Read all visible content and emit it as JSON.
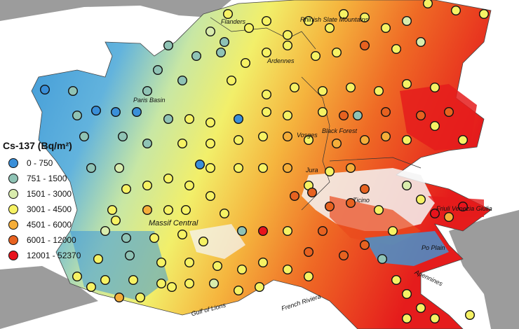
{
  "legend": {
    "title": "Cs-137 (Bq/m²)",
    "classes": [
      {
        "label": "0 - 750",
        "color": "#3a8fd9"
      },
      {
        "label": "751 - 1500",
        "color": "#8fc3b5"
      },
      {
        "label": "1501 - 3000",
        "color": "#d9ecad"
      },
      {
        "label": "3001 - 4500",
        "color": "#f6f264"
      },
      {
        "label": "4501 - 6000",
        "color": "#f5ae3a"
      },
      {
        "label": "6001 - 12000",
        "color": "#e76220"
      },
      {
        "label": "12001 - 52370",
        "color": "#e8131c"
      }
    ]
  },
  "place_labels": {
    "flanders": "Flanders",
    "rhinish": "Rhinish Slate Mountains",
    "ardennes": "Ardennes",
    "paris_basin": "Paris Basin",
    "vosges": "Vosges",
    "black_forest": "Black Forest",
    "jura": "Jura",
    "ticino": "Ticino",
    "friuli": "Friuli Venezia Giulia",
    "massif_central": "Massif Central",
    "po_plain": "Po Plain",
    "apennines": "Apennines",
    "gulf_of_lions": "Gulf of Lions",
    "french_riviera": "French Riviera"
  },
  "stations_note": "Sampling sites shown as circles colored by Cs-137 class"
}
